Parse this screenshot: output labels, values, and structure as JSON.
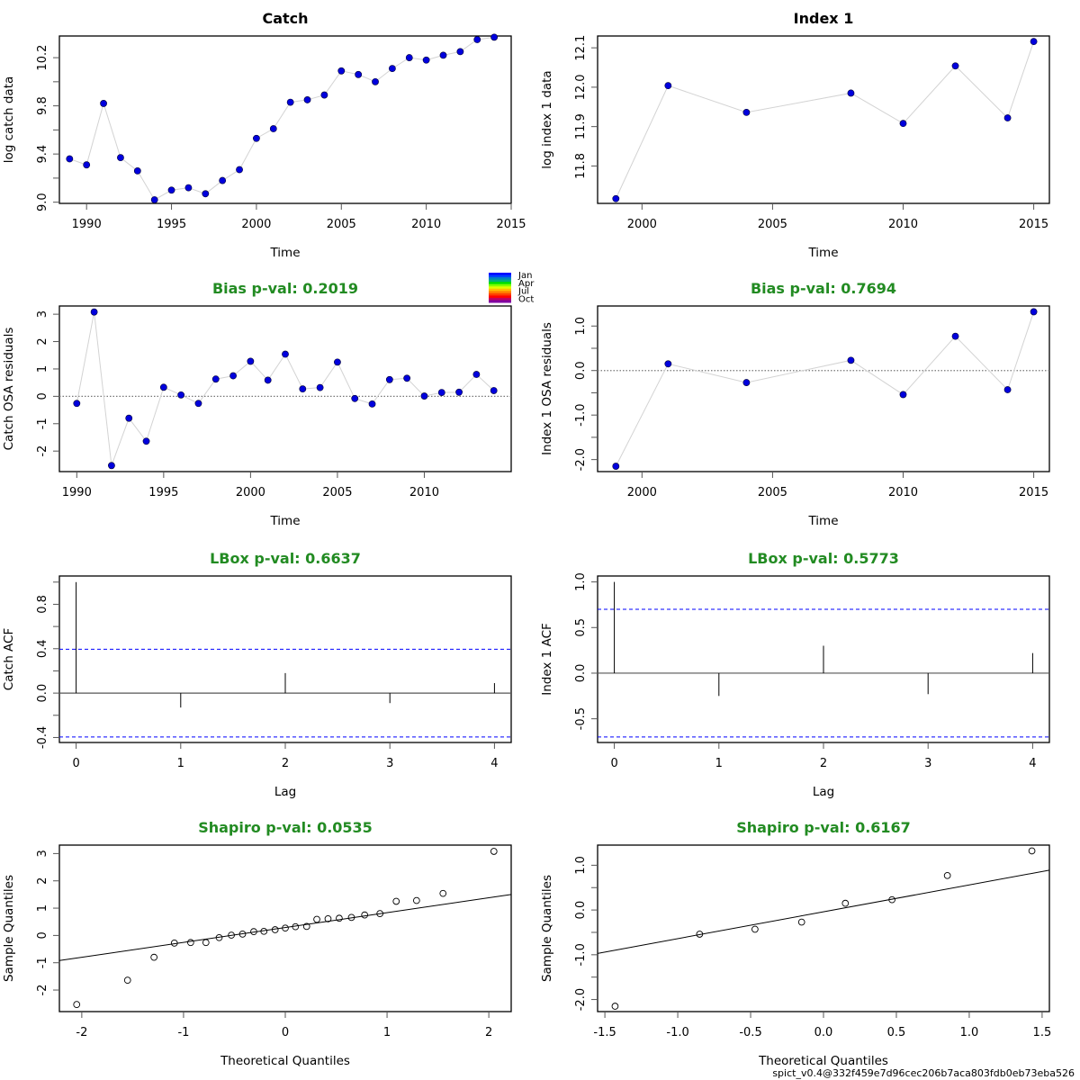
{
  "footer": "spict_v0.4@332f459e7d96cec206b7aca803fdb0eb73eba526",
  "legend": {
    "labels": [
      "Jan",
      "Apr",
      "Jul",
      "Oct"
    ],
    "colors": [
      "#0000ff",
      "#0040ff",
      "#0080c0",
      "#00b080",
      "#00e000",
      "#80ff00",
      "#e0ff00",
      "#ffc000",
      "#ff8000",
      "#ff4000",
      "#ff0000",
      "#c00060",
      "#8000a0"
    ]
  },
  "colors": {
    "points": "#0000dd",
    "line": "#d3d3d3",
    "title_green": "#228b22",
    "ci": "#0000ff"
  },
  "chart_data": [
    {
      "id": "catch-data",
      "type": "line",
      "title": "Catch",
      "title_color": "#000000",
      "xlabel": "Time",
      "ylabel": "log catch data",
      "xlim": [
        1988.4,
        2015
      ],
      "ylim": [
        8.99,
        10.38
      ],
      "xticks": [
        1990,
        1995,
        2000,
        2005,
        2010,
        2015
      ],
      "yticks": [
        9.0,
        9.2,
        9.4,
        9.6,
        9.8,
        10.0,
        10.2
      ],
      "ytick_labels": [
        "9.0",
        "",
        "9.4",
        "",
        "9.8",
        "",
        "10.2"
      ],
      "x": [
        1989,
        1990,
        1991,
        1992,
        1993,
        1994,
        1995,
        1996,
        1997,
        1998,
        1999,
        2000,
        2001,
        2002,
        2003,
        2004,
        2005,
        2006,
        2007,
        2008,
        2009,
        2010,
        2011,
        2012,
        2013,
        2014
      ],
      "y": [
        9.36,
        9.31,
        9.82,
        9.37,
        9.26,
        9.02,
        9.1,
        9.12,
        9.07,
        9.18,
        9.27,
        9.53,
        9.61,
        9.83,
        9.85,
        9.89,
        10.09,
        10.06,
        10.0,
        10.11,
        10.2,
        10.18,
        10.22,
        10.25,
        10.35,
        10.37
      ]
    },
    {
      "id": "index-data",
      "type": "line",
      "title": "Index 1",
      "title_color": "#000000",
      "xlabel": "Time",
      "ylabel": "log index 1 data",
      "xlim": [
        1998.3,
        2015.6
      ],
      "ylim": [
        11.705,
        12.13
      ],
      "xticks": [
        2000,
        2005,
        2010,
        2015
      ],
      "yticks": [
        11.8,
        11.9,
        12.0,
        12.1
      ],
      "ytick_labels": [
        "11.8",
        "11.9",
        "12.0",
        "12.1"
      ],
      "x": [
        1999,
        2001,
        2004,
        2008,
        2010,
        2012,
        2014,
        2015
      ],
      "y": [
        11.717,
        12.004,
        11.936,
        11.985,
        11.908,
        12.054,
        11.922,
        12.116
      ]
    },
    {
      "id": "catch-residuals",
      "type": "line",
      "title": "Bias p-val: 0.2019",
      "title_color": "#228b22",
      "xlabel": "Time",
      "ylabel": "Catch OSA residuals",
      "zero_line": true,
      "xlim": [
        1989.0,
        2015.0
      ],
      "ylim": [
        -2.75,
        3.3
      ],
      "xticks": [
        1990,
        1995,
        2000,
        2005,
        2010
      ],
      "yticks": [
        -2,
        -1,
        0,
        1,
        2,
        3
      ],
      "ytick_labels": [
        "-2",
        "-1",
        "0",
        "1",
        "2",
        "3"
      ],
      "x": [
        1990,
        1991,
        1992,
        1993,
        1994,
        1995,
        1996,
        1997,
        1998,
        1999,
        2000,
        2001,
        2002,
        2003,
        2004,
        2005,
        2006,
        2007,
        2008,
        2009,
        2010,
        2011,
        2012,
        2013,
        2014
      ],
      "y": [
        -0.26,
        3.08,
        -2.53,
        -0.8,
        -1.64,
        0.33,
        0.05,
        -0.26,
        0.63,
        0.75,
        1.28,
        0.59,
        1.54,
        0.27,
        0.32,
        1.25,
        -0.08,
        -0.28,
        0.61,
        0.66,
        0.01,
        0.14,
        0.15,
        0.8,
        0.21
      ]
    },
    {
      "id": "index-residuals",
      "type": "line",
      "title": "Bias p-val: 0.7694",
      "title_color": "#228b22",
      "xlabel": "Time",
      "ylabel": "Index 1 OSA residuals",
      "zero_line": true,
      "xlim": [
        1998.3,
        2015.6
      ],
      "ylim": [
        -2.27,
        1.45
      ],
      "xticks": [
        2000,
        2005,
        2010,
        2015
      ],
      "yticks": [
        -2.0,
        -1.5,
        -1.0,
        -0.5,
        0.0,
        0.5,
        1.0
      ],
      "ytick_labels": [
        "-2.0",
        "",
        "-1.0",
        "",
        "0.0",
        "",
        "1.0"
      ],
      "x": [
        1999,
        2001,
        2004,
        2008,
        2010,
        2012,
        2014,
        2015
      ],
      "y": [
        -2.15,
        0.15,
        -0.27,
        0.23,
        -0.54,
        0.77,
        -0.43,
        1.32
      ]
    },
    {
      "id": "catch-acf",
      "type": "bar",
      "title": "LBox p-val: 0.6637",
      "title_color": "#228b22",
      "xlabel": "Lag",
      "ylabel": "Catch ACF",
      "xlim": [
        -0.16,
        4.16
      ],
      "ylim": [
        -0.445,
        1.055
      ],
      "xticks": [
        0,
        1,
        2,
        3,
        4
      ],
      "yticks": [
        -0.4,
        -0.2,
        0.0,
        0.2,
        0.4,
        0.6,
        0.8,
        1.0
      ],
      "ytick_labels": [
        "-0.4",
        "",
        "0.0",
        "",
        "0.4",
        "",
        "0.8",
        ""
      ],
      "x": [
        0,
        1,
        2,
        3,
        4
      ],
      "y": [
        1.0,
        -0.13,
        0.18,
        -0.09,
        0.09
      ],
      "ci": 0.395
    },
    {
      "id": "index-acf",
      "type": "bar",
      "title": "LBox p-val: 0.5773",
      "title_color": "#228b22",
      "xlabel": "Lag",
      "ylabel": "Index 1 ACF",
      "xlim": [
        -0.16,
        4.16
      ],
      "ylim": [
        -0.76,
        1.065
      ],
      "xticks": [
        0,
        1,
        2,
        3,
        4
      ],
      "yticks": [
        -0.5,
        0.0,
        0.5,
        1.0
      ],
      "ytick_labels": [
        "-0.5",
        "0.0",
        "0.5",
        "1.0"
      ],
      "x": [
        0,
        1,
        2,
        3,
        4
      ],
      "y": [
        1.0,
        -0.25,
        0.3,
        -0.23,
        0.22
      ],
      "ci": 0.7
    },
    {
      "id": "catch-qq",
      "type": "scatter",
      "title": "Shapiro p-val: 0.0535",
      "title_color": "#228b22",
      "xlabel": "Theoretical Quantiles",
      "ylabel": "Sample Quantiles",
      "xlim": [
        -2.22,
        2.22
      ],
      "ylim": [
        -2.79,
        3.31
      ],
      "xticks": [
        -2,
        -1,
        0,
        1,
        2
      ],
      "yticks": [
        -2,
        -1,
        0,
        1,
        2,
        3
      ],
      "ytick_labels": [
        "-2",
        "-1",
        "0",
        "1",
        "2",
        "3"
      ],
      "x": [
        -2.05,
        -1.55,
        -1.29,
        -1.09,
        -0.93,
        -0.78,
        -0.65,
        -0.53,
        -0.42,
        -0.31,
        -0.21,
        -0.1,
        0.0,
        0.1,
        0.21,
        0.31,
        0.42,
        0.53,
        0.65,
        0.78,
        0.93,
        1.09,
        1.29,
        1.55,
        2.05
      ],
      "y": [
        -2.53,
        -1.64,
        -0.8,
        -0.28,
        -0.26,
        -0.26,
        -0.08,
        0.01,
        0.05,
        0.14,
        0.15,
        0.21,
        0.27,
        0.32,
        0.33,
        0.59,
        0.61,
        0.63,
        0.66,
        0.75,
        0.8,
        1.25,
        1.28,
        1.54,
        3.08
      ],
      "qq_line": [
        [
          -2.22,
          -0.92
        ],
        [
          2.22,
          1.5
        ]
      ]
    },
    {
      "id": "index-qq",
      "type": "scatter",
      "title": "Shapiro p-val: 0.6167",
      "title_color": "#228b22",
      "xlabel": "Theoretical Quantiles",
      "ylabel": "Sample Quantiles",
      "xlim": [
        -1.55,
        1.55
      ],
      "ylim": [
        -2.27,
        1.45
      ],
      "xticks": [
        -1.5,
        -1.0,
        -0.5,
        0.0,
        0.5,
        1.0,
        1.5
      ],
      "yticks": [
        -2.0,
        -1.5,
        -1.0,
        -0.5,
        0.0,
        0.5,
        1.0
      ],
      "ytick_labels": [
        "-2.0",
        "",
        "-1.0",
        "",
        "0.0",
        "",
        "1.0"
      ],
      "xtick_labels": [
        "-1.5",
        "-1.0",
        "-0.5",
        "0.0",
        "0.5",
        "1.0",
        "1.5"
      ],
      "x": [
        -1.43,
        -0.85,
        -0.47,
        -0.15,
        0.15,
        0.47,
        0.85,
        1.43
      ],
      "y": [
        -2.15,
        -0.54,
        -0.43,
        -0.27,
        0.15,
        0.23,
        0.77,
        1.32
      ],
      "qq_line": [
        [
          -1.55,
          -0.97
        ],
        [
          1.55,
          0.89
        ]
      ]
    }
  ]
}
